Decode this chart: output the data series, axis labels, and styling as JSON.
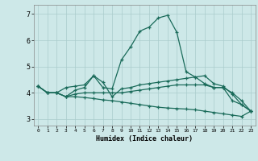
{
  "xlabel": "Humidex (Indice chaleur)",
  "background_color": "#cde8e8",
  "grid_color": "#aacccc",
  "line_color": "#1a6b5a",
  "xlim": [
    -0.5,
    23.5
  ],
  "ylim": [
    2.75,
    7.35
  ],
  "yticks": [
    3,
    4,
    5,
    6,
    7
  ],
  "xticks": [
    0,
    1,
    2,
    3,
    4,
    5,
    6,
    7,
    8,
    9,
    10,
    11,
    12,
    13,
    14,
    15,
    16,
    17,
    18,
    19,
    20,
    21,
    22,
    23
  ],
  "line1_y": [
    4.25,
    4.0,
    4.0,
    4.2,
    4.25,
    4.3,
    4.65,
    4.2,
    4.15,
    5.25,
    5.75,
    6.35,
    6.5,
    6.85,
    6.95,
    6.3,
    4.8,
    4.6,
    4.35,
    4.2,
    4.2,
    3.7,
    3.55,
    3.3
  ],
  "line2_y": [
    4.25,
    4.0,
    4.0,
    3.85,
    4.1,
    4.2,
    4.65,
    4.4,
    3.85,
    4.15,
    4.2,
    4.3,
    4.35,
    4.4,
    4.45,
    4.5,
    4.55,
    4.6,
    4.65,
    4.35,
    4.25,
    3.95,
    3.55,
    3.3
  ],
  "line3_y": [
    4.25,
    4.0,
    4.0,
    3.85,
    3.95,
    4.0,
    4.0,
    4.0,
    4.0,
    4.0,
    4.05,
    4.1,
    4.15,
    4.2,
    4.25,
    4.3,
    4.3,
    4.3,
    4.3,
    4.2,
    4.2,
    4.0,
    3.7,
    3.3
  ],
  "line4_y": [
    4.25,
    4.0,
    4.0,
    3.85,
    3.85,
    3.82,
    3.78,
    3.73,
    3.7,
    3.65,
    3.6,
    3.55,
    3.5,
    3.45,
    3.42,
    3.4,
    3.38,
    3.35,
    3.3,
    3.25,
    3.2,
    3.15,
    3.1,
    3.3
  ]
}
